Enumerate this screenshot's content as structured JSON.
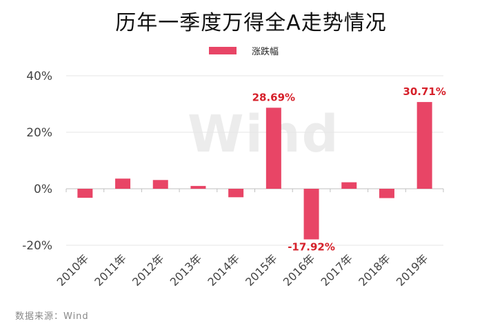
{
  "header": {
    "title": "历年一季度万得全A走势情况"
  },
  "watermark": "Wind",
  "source_note": "数据来源：Wind",
  "chart_data": {
    "type": "bar",
    "title": "历年一季度万得全A走势情况",
    "categories": [
      "2010年",
      "2011年",
      "2012年",
      "2013年",
      "2014年",
      "2015年",
      "2016年",
      "2017年",
      "2018年",
      "2019年"
    ],
    "series": [
      {
        "name": "涨跌幅",
        "values": [
          -3.2,
          3.6,
          3.1,
          1.0,
          -3.0,
          28.69,
          -17.92,
          2.3,
          -3.3,
          30.71
        ],
        "color": "#e84566"
      }
    ],
    "data_labels": [
      {
        "index": 5,
        "text": "28.69%"
      },
      {
        "index": 6,
        "text": "-17.92%"
      },
      {
        "index": 9,
        "text": "30.71%"
      }
    ],
    "data_label_color": "#d6202a",
    "y_ticks": [
      "-20%",
      "0%",
      "20%",
      "40%"
    ],
    "y_tick_values": [
      -20,
      0,
      20,
      40
    ],
    "ylim": [
      -20,
      40
    ],
    "grid": true,
    "legend": "top-center"
  }
}
